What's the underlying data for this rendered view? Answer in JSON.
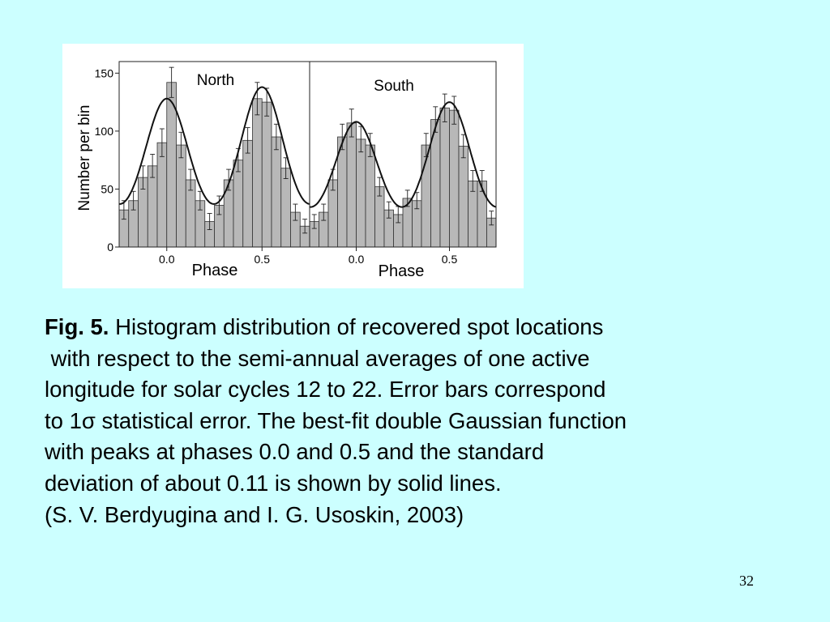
{
  "chart_data": [
    {
      "type": "bar",
      "title": "North",
      "xlabel": "Phase",
      "ylabel": "Number per bin",
      "ylim": [
        0,
        160
      ],
      "xlim": [
        -0.25,
        0.75
      ],
      "yticks": [
        "0",
        "50",
        "100",
        "150"
      ],
      "xticks": [
        "0.0",
        "0.5"
      ],
      "bin_width": 0.05,
      "x": [
        -0.25,
        -0.2,
        -0.15,
        -0.1,
        -0.05,
        0.0,
        0.05,
        0.1,
        0.15,
        0.2,
        0.25,
        0.3,
        0.35,
        0.4,
        0.45,
        0.5,
        0.55,
        0.6,
        0.65,
        0.7
      ],
      "values": [
        32,
        40,
        60,
        70,
        90,
        142,
        88,
        58,
        40,
        22,
        36,
        58,
        75,
        92,
        128,
        125,
        95,
        68,
        30,
        18
      ],
      "errors": [
        8,
        8,
        10,
        10,
        12,
        13,
        11,
        9,
        8,
        7,
        8,
        9,
        10,
        11,
        14,
        12,
        11,
        9,
        7,
        6
      ],
      "fit": {
        "type": "double-gaussian",
        "peaks": [
          0.0,
          0.5
        ],
        "sigma": 0.11,
        "baseline": 20,
        "amplitudes": [
          108,
          118
        ]
      }
    },
    {
      "type": "bar",
      "title": "South",
      "xlabel": "Phase",
      "ylabel": "",
      "ylim": [
        0,
        160
      ],
      "xlim": [
        -0.25,
        0.75
      ],
      "xticks": [
        "0.0",
        "0.5"
      ],
      "bin_width": 0.05,
      "x": [
        -0.25,
        -0.2,
        -0.15,
        -0.1,
        -0.05,
        0.0,
        0.05,
        0.1,
        0.15,
        0.2,
        0.25,
        0.3,
        0.35,
        0.4,
        0.45,
        0.5,
        0.55,
        0.6,
        0.65,
        0.7
      ],
      "values": [
        22,
        30,
        58,
        95,
        107,
        93,
        88,
        52,
        32,
        28,
        42,
        40,
        88,
        110,
        120,
        118,
        87,
        57,
        57,
        25
      ],
      "errors": [
        6,
        7,
        9,
        11,
        12,
        11,
        10,
        8,
        7,
        7,
        7,
        7,
        10,
        11,
        12,
        12,
        10,
        9,
        9,
        6
      ],
      "fit": {
        "type": "double-gaussian",
        "peaks": [
          0.0,
          0.5
        ],
        "sigma": 0.11,
        "baseline": 20,
        "amplitudes": [
          88,
          105
        ]
      }
    }
  ],
  "caption": {
    "fig_label": "Fig. 5.",
    "line1": " Histogram distribution of recovered spot locations",
    "line2": " with respect to the semi-annual averages of one active",
    "line3": "longitude for solar cycles 12 to 22. Error bars correspond",
    "line4": "to 1σ statistical error. The best-fit double Gaussian function",
    "line5": "with peaks at phases 0.0 and 0.5 and the standard",
    "line6": "deviation of about 0.11 is shown by solid lines.",
    "line7": "(S. V. Berdyugina and I. G. Usoskin, 2003)"
  },
  "page_number": "32",
  "colors": {
    "background": "#ccffff",
    "figure_background": "#ffffff",
    "bar_fill": "#b8b8b8",
    "bar_stroke": "#333333",
    "fit_line": "#111111"
  }
}
